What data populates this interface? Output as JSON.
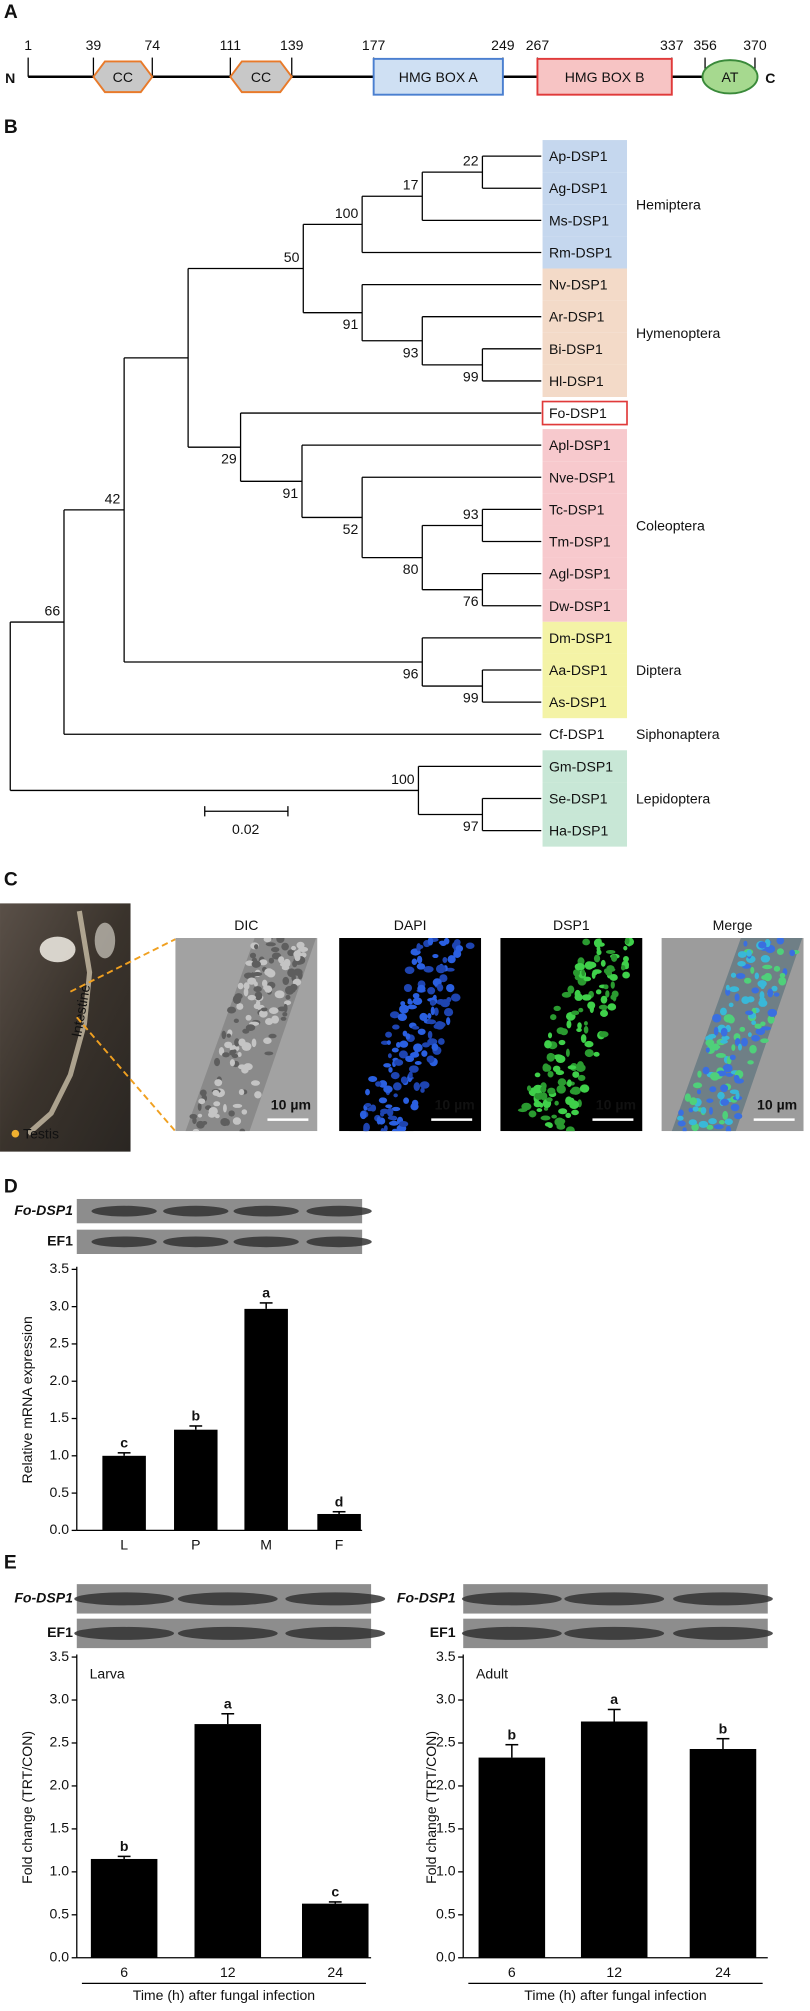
{
  "figure": {
    "a": {
      "label": "A",
      "n_term": "N",
      "c_term": "C",
      "positions": [
        1,
        39,
        74,
        111,
        139,
        177,
        249,
        267,
        337,
        356,
        370
      ],
      "domains": [
        "CC",
        "CC",
        "HMG BOX A",
        "HMG BOX B",
        "AT"
      ]
    },
    "b": {
      "label": "B",
      "groups": [
        {
          "name": "Hemiptera",
          "color": "#c5d7ee",
          "leaves": [
            "Ap-DSP1",
            "Ag-DSP1",
            "Ms-DSP1",
            "Rm-DSP1"
          ]
        },
        {
          "name": "Hymenoptera",
          "color": "#f3dac8",
          "leaves": [
            "Nv-DSP1",
            "Ar-DSP1",
            "Bi-DSP1",
            "Hl-DSP1"
          ]
        },
        {
          "border": "#e03a3a",
          "leaves": [
            "Fo-DSP1"
          ]
        },
        {
          "name": "Coleoptera",
          "color": "#f7c9cd",
          "leaves": [
            "Apl-DSP1",
            "Nve-DSP1",
            "Tc-DSP1",
            "Tm-DSP1",
            "Agl-DSP1",
            "Dw-DSP1"
          ]
        },
        {
          "name": "Diptera",
          "color": "#f4f3a6",
          "leaves": [
            "Dm-DSP1",
            "Aa-DSP1",
            "As-DSP1"
          ]
        },
        {
          "name": "Siphonaptera",
          "leaves": [
            "Cf-DSP1"
          ]
        },
        {
          "name": "Lepidoptera",
          "color": "#c8e7d6",
          "leaves": [
            "Gm-DSP1",
            "Se-DSP1",
            "Ha-DSP1"
          ]
        }
      ],
      "supports": [
        22,
        17,
        100,
        99,
        93,
        91,
        50,
        93,
        76,
        80,
        52,
        91,
        29,
        99,
        96,
        42,
        66,
        97,
        100
      ],
      "scale": "0.02"
    },
    "c": {
      "label": "C",
      "photo_labels": [
        "Intestine",
        "Testis"
      ],
      "panels": [
        "DIC",
        "DAPI",
        "DSP1",
        "Merge"
      ],
      "scale_bar": "10 µm"
    },
    "d": {
      "label": "D",
      "gel_labels": [
        "Fo-DSP1",
        "EF1"
      ]
    },
    "e": {
      "label": "E",
      "gel_labels": [
        "Fo-DSP1",
        "EF1"
      ]
    }
  },
  "chart_data": [
    {
      "type": "bar",
      "categories": [
        "L",
        "P",
        "M",
        "F"
      ],
      "values": [
        1.0,
        1.35,
        2.97,
        0.22
      ],
      "errors": [
        0.04,
        0.05,
        0.08,
        0.03
      ],
      "annotations": [
        "c",
        "b",
        "a",
        "d"
      ],
      "ylabel": "Relative mRNA expression",
      "color": "#000000",
      "ylim": [
        0,
        3.5
      ],
      "yticks": [
        {
          "value": 0,
          "label": "0.0"
        },
        0.5,
        {
          "value": 1,
          "label": "1.0"
        },
        1.5,
        {
          "value": 2,
          "label": "2.0"
        },
        2.5,
        {
          "value": 3,
          "label": "3.0"
        },
        3.5
      ]
    },
    {
      "type": "bar",
      "title": "Larva",
      "categories": [
        "6",
        "12",
        "24"
      ],
      "values": [
        1.15,
        2.72,
        0.63
      ],
      "errors": [
        0.03,
        0.12,
        0.02
      ],
      "annotations": [
        "b",
        "a",
        "c"
      ],
      "ylabel": "Fold change (TRT/CON)",
      "xlabel": "Time (h) after fungal infection",
      "color": "#000000",
      "ylim": [
        0,
        3.5
      ],
      "yticks": [
        {
          "value": 0,
          "label": "0.0"
        },
        0.5,
        {
          "value": 1,
          "label": "1.0"
        },
        1.5,
        {
          "value": 2,
          "label": "2.0"
        },
        2.5,
        {
          "value": 3,
          "label": "3.0"
        },
        3.5
      ]
    },
    {
      "type": "bar",
      "title": "Adult",
      "categories": [
        "6",
        "12",
        "24"
      ],
      "values": [
        2.33,
        2.75,
        2.43
      ],
      "errors": [
        0.15,
        0.14,
        0.12
      ],
      "annotations": [
        "b",
        "a",
        "b"
      ],
      "ylabel": "Fold change (TRT/CON)",
      "xlabel": "Time (h) after fungal infection",
      "color": "#000000",
      "ylim": [
        0,
        3.5
      ],
      "yticks": [
        {
          "value": 0,
          "label": "0.0"
        },
        0.5,
        {
          "value": 1,
          "label": "1.0"
        },
        1.5,
        {
          "value": 2,
          "label": "2.0"
        },
        2.5,
        {
          "value": 3,
          "label": "3.0"
        },
        3.5
      ]
    }
  ]
}
